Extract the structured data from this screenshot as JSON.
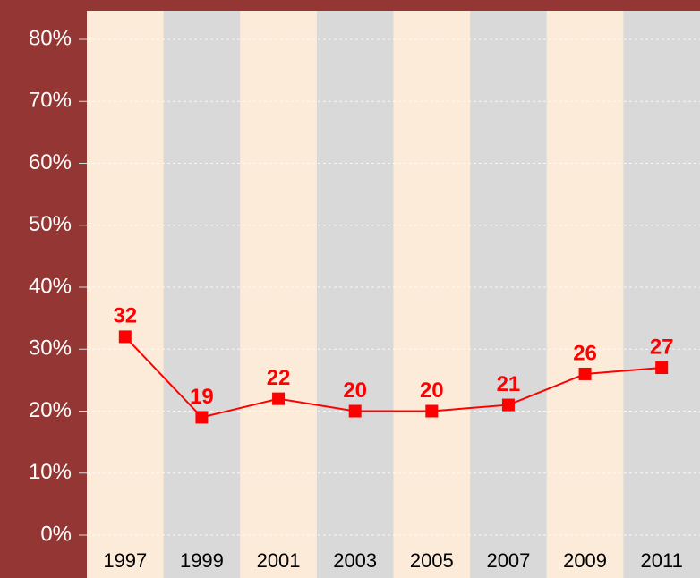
{
  "chart_data": {
    "type": "line",
    "categories": [
      "1997",
      "1999",
      "2001",
      "2003",
      "2005",
      "2007",
      "2009",
      "2011"
    ],
    "series": [
      {
        "color": "#ff0000",
        "values": [
          32,
          19,
          22,
          20,
          20,
          21,
          26,
          27
        ]
      }
    ],
    "ylim": [
      0,
      80
    ],
    "yticks": [
      {
        "value": 0,
        "label": "0%"
      },
      {
        "value": 10,
        "label": "10%"
      },
      {
        "value": 20,
        "label": "20%"
      },
      {
        "value": 30,
        "label": "30%"
      },
      {
        "value": 40,
        "label": "40%"
      },
      {
        "value": 50,
        "label": "50%"
      },
      {
        "value": 60,
        "label": "60%"
      },
      {
        "value": 70,
        "label": "70%"
      },
      {
        "value": 80,
        "label": "80%"
      }
    ],
    "grid": true
  }
}
